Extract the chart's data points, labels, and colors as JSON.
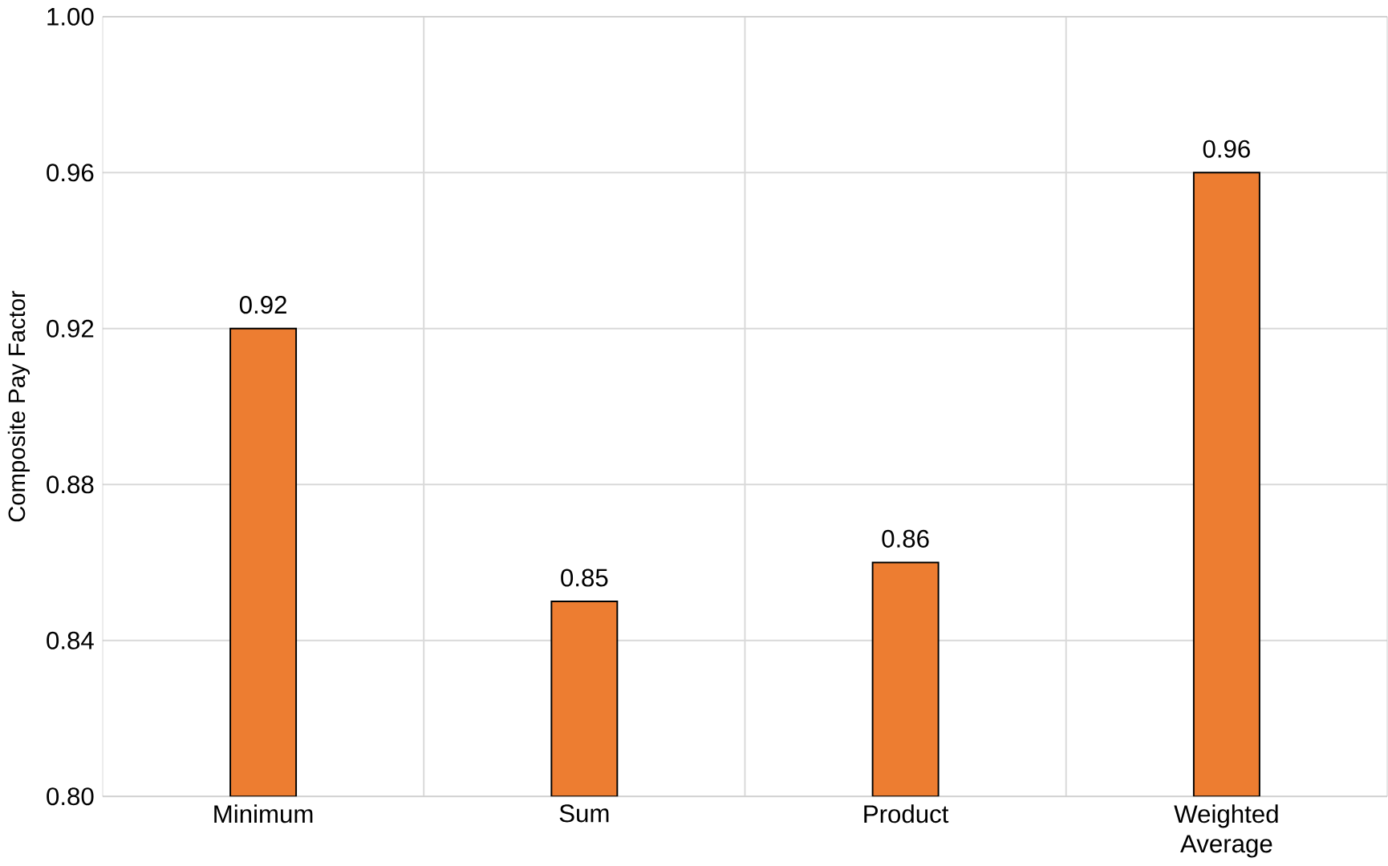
{
  "chart_data": {
    "type": "bar",
    "ylabel": "Composite Pay Factor",
    "categories": [
      "Minimum",
      "Sum",
      "Product",
      "Weighted Average"
    ],
    "values": [
      0.92,
      0.85,
      0.86,
      0.96
    ],
    "color": "#ed7d31",
    "ylim": [
      0.8,
      1.0
    ],
    "yticks": [
      {
        "value": 0.8,
        "label": "0.80"
      },
      0.84,
      0.88,
      0.92,
      0.96,
      {
        "value": 1.0,
        "label": "1.00"
      }
    ],
    "grid": true,
    "data_labels": true
  }
}
